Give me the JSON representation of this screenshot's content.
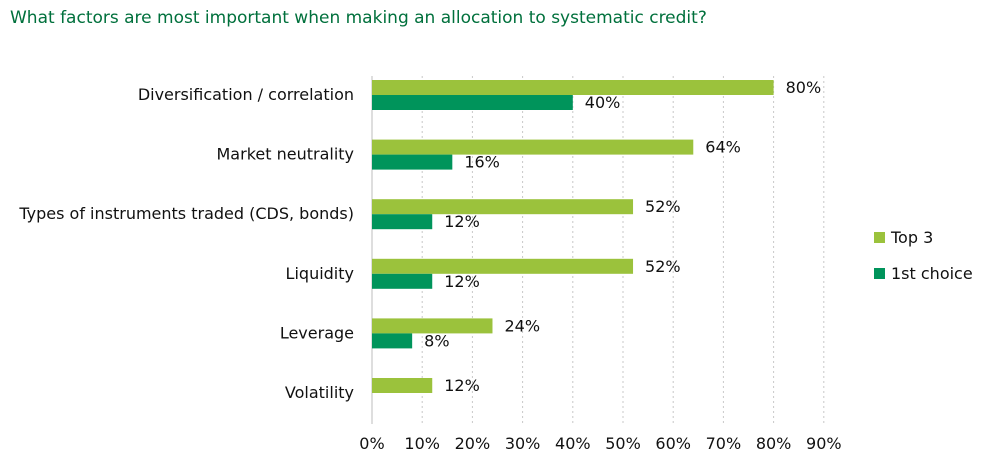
{
  "colors": {
    "title": "#00703c",
    "top3": "#9bc23c",
    "first_choice": "#00945b"
  },
  "chart_data": {
    "type": "bar",
    "orientation": "horizontal",
    "title": "What factors are most important when making an allocation to systematic credit?",
    "categories": [
      "Diversification / correlation",
      "Market neutrality",
      "Types of instruments traded (CDS, bonds)",
      "Liquidity",
      "Leverage",
      "Volatility"
    ],
    "series": [
      {
        "name": "Top 3",
        "color": "#9bc23c",
        "values": [
          80,
          64,
          52,
          52,
          24,
          12
        ],
        "labels": [
          "80%",
          "64%",
          "52%",
          "52%",
          "24%",
          "12%"
        ]
      },
      {
        "name": "1st choice",
        "color": "#00945b",
        "values": [
          40,
          16,
          12,
          12,
          8,
          null
        ],
        "labels": [
          "40%",
          "16%",
          "12%",
          "12%",
          "8%",
          ""
        ]
      }
    ],
    "xlim": [
      0,
      90
    ],
    "xticks": [
      0,
      10,
      20,
      30,
      40,
      50,
      60,
      70,
      80,
      90
    ],
    "xtick_labels": [
      "0%",
      "10%",
      "20%",
      "30%",
      "40%",
      "50%",
      "60%",
      "70%",
      "80%",
      "90%"
    ],
    "grid": "vertical dotted",
    "legend": "right"
  }
}
